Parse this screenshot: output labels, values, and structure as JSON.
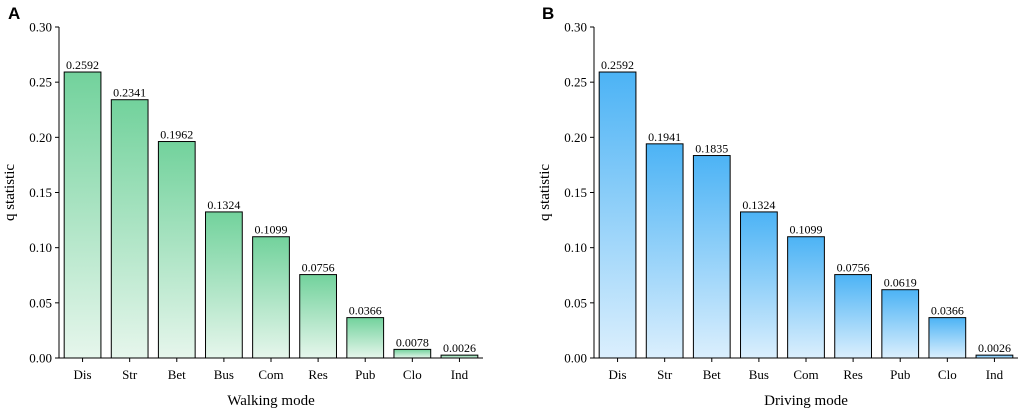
{
  "colors": {
    "walking_top": "#72d29c",
    "walking_bottom": "#e6f6ec",
    "driving_top": "#4cb3f5",
    "driving_bottom": "#dbeffd",
    "outline": "#000000"
  },
  "chart_data": [
    {
      "type": "bar",
      "panel": "A",
      "title": "",
      "xlabel": "Walking mode",
      "ylabel": "q statistic",
      "ylim": [
        0,
        0.3
      ],
      "yticks": [
        0.0,
        0.05,
        0.1,
        0.15,
        0.2,
        0.25,
        0.3
      ],
      "ytick_labels": [
        "0.00",
        "0.05",
        "0.10",
        "0.15",
        "0.20",
        "0.25",
        "0.30"
      ],
      "categories": [
        "Dis",
        "Str",
        "Bet",
        "Bus",
        "Com",
        "Res",
        "Pub",
        "Clo",
        "Ind"
      ],
      "values": [
        0.2592,
        0.2341,
        0.1962,
        0.1324,
        0.1099,
        0.0756,
        0.0366,
        0.0078,
        0.0026
      ],
      "value_labels": [
        "0.2592",
        "0.2341",
        "0.1962",
        "0.1324",
        "0.1099",
        "0.0756",
        "0.0366",
        "0.0078",
        "0.0026"
      ],
      "grid": false
    },
    {
      "type": "bar",
      "panel": "B",
      "title": "",
      "xlabel": "Driving mode",
      "ylabel": "q statistic",
      "ylim": [
        0,
        0.3
      ],
      "yticks": [
        0.0,
        0.05,
        0.1,
        0.15,
        0.2,
        0.25,
        0.3
      ],
      "ytick_labels": [
        "0.00",
        "0.05",
        "0.10",
        "0.15",
        "0.20",
        "0.25",
        "0.30"
      ],
      "categories": [
        "Dis",
        "Str",
        "Bet",
        "Bus",
        "Com",
        "Res",
        "Pub",
        "Clo",
        "Ind"
      ],
      "values": [
        0.2592,
        0.1941,
        0.1835,
        0.1324,
        0.1099,
        0.0756,
        0.0619,
        0.0366,
        0.0026
      ],
      "value_labels": [
        "0.2592",
        "0.1941",
        "0.1835",
        "0.1324",
        "0.1099",
        "0.0756",
        "0.0619",
        "0.0366",
        "0.0026"
      ],
      "grid": false
    }
  ]
}
